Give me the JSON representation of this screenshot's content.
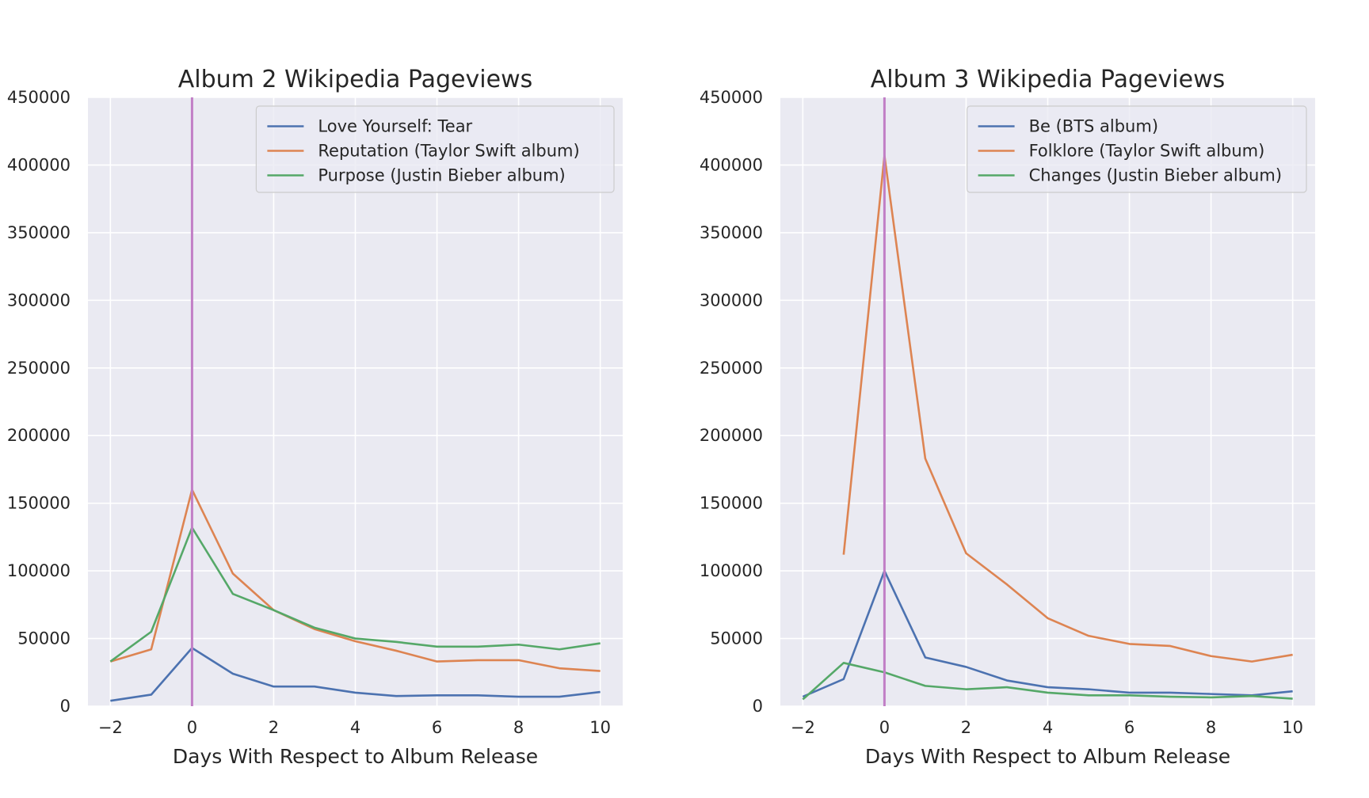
{
  "chart_data": [
    {
      "type": "line",
      "title": "Album 2 Wikipedia Pageviews",
      "xlabel": "Days With Respect to Album Release",
      "ylabel": "",
      "xlim": [
        -2.55,
        10.55
      ],
      "ylim": [
        0,
        450000
      ],
      "xticks": [
        -2,
        0,
        2,
        4,
        6,
        8,
        10
      ],
      "xtick_labels": [
        "−2",
        "0",
        "2",
        "4",
        "6",
        "8",
        "10"
      ],
      "yticks": [
        0,
        50000,
        100000,
        150000,
        200000,
        250000,
        300000,
        350000,
        400000,
        450000
      ],
      "ytick_labels": [
        "0",
        "50000",
        "100000",
        "150000",
        "200000",
        "250000",
        "300000",
        "350000",
        "400000",
        "450000"
      ],
      "grid": true,
      "legend_position": "top-right",
      "vline_x": 0,
      "vline_color": "#c17fc6",
      "x": [
        -2,
        -1,
        0,
        1,
        2,
        3,
        4,
        5,
        6,
        7,
        8,
        9,
        10
      ],
      "series": [
        {
          "name": "Love Yourself: Tear",
          "color": "#4c72b0",
          "values": [
            4000,
            8500,
            43000,
            24000,
            14500,
            14500,
            10000,
            7500,
            8000,
            8000,
            7000,
            7000,
            10500
          ]
        },
        {
          "name": "Reputation (Taylor Swift album)",
          "color": "#dd8452",
          "values": [
            33000,
            42000,
            160000,
            98000,
            71000,
            57000,
            48000,
            41000,
            33000,
            34000,
            34000,
            28000,
            26000
          ]
        },
        {
          "name": "Purpose (Justin Bieber album)",
          "color": "#55a868",
          "values": [
            33000,
            55000,
            132000,
            83000,
            71000,
            58000,
            50000,
            47500,
            44000,
            44000,
            45500,
            42000,
            46500
          ]
        }
      ]
    },
    {
      "type": "line",
      "title": "Album 3 Wikipedia Pageviews",
      "xlabel": "Days With Respect to Album Release",
      "ylabel": "",
      "xlim": [
        -2.55,
        10.55
      ],
      "ylim": [
        0,
        450000
      ],
      "xticks": [
        -2,
        0,
        2,
        4,
        6,
        8,
        10
      ],
      "xtick_labels": [
        "−2",
        "0",
        "2",
        "4",
        "6",
        "8",
        "10"
      ],
      "yticks": [
        0,
        50000,
        100000,
        150000,
        200000,
        250000,
        300000,
        350000,
        400000,
        450000
      ],
      "ytick_labels": [
        "0",
        "50000",
        "100000",
        "150000",
        "200000",
        "250000",
        "300000",
        "350000",
        "400000",
        "450000"
      ],
      "grid": true,
      "legend_position": "top-right",
      "vline_x": 0,
      "vline_color": "#c17fc6",
      "x": [
        -2,
        -1,
        0,
        1,
        2,
        3,
        4,
        5,
        6,
        7,
        8,
        9,
        10
      ],
      "series": [
        {
          "name": "Be (BTS album)",
          "color": "#4c72b0",
          "values": [
            7000,
            20000,
            100000,
            36000,
            29000,
            19000,
            14000,
            12500,
            10000,
            10000,
            9000,
            8000,
            11000
          ]
        },
        {
          "name": "Folklore (Taylor Swift album)",
          "color": "#dd8452",
          "values": [
            null,
            112000,
            407000,
            183000,
            113000,
            90000,
            65000,
            52000,
            46000,
            44500,
            37000,
            33000,
            38000
          ]
        },
        {
          "name": "Changes (Justin Bieber album)",
          "color": "#55a868",
          "values": [
            5000,
            32000,
            25000,
            15000,
            12500,
            14000,
            10000,
            8000,
            8000,
            7000,
            6500,
            7500,
            5500
          ]
        }
      ]
    }
  ]
}
